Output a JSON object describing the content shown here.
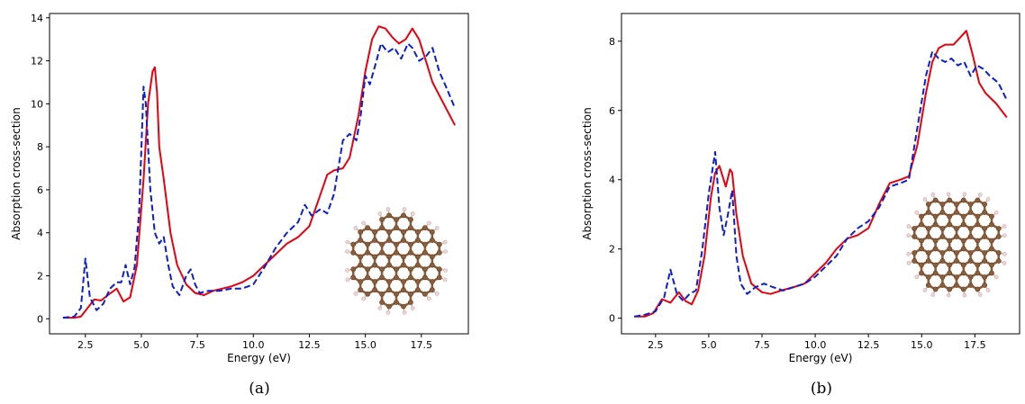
{
  "colors": {
    "red": "#e8000b",
    "blue": "#0a1fd1",
    "carbon": "#8b5e3c",
    "hydrogen": "#f2d6d6"
  },
  "chart_data": [
    {
      "type": "line",
      "caption": "(a)",
      "xlabel": "Energy (eV)",
      "ylabel": "Absorption cross-section",
      "xlim": [
        0.9,
        19.6
      ],
      "ylim": [
        -0.7,
        14.2
      ],
      "xticks": [
        2.5,
        5.0,
        7.5,
        10.0,
        12.5,
        15.0,
        17.5
      ],
      "xtick_labels": [
        "2.5",
        "5.0",
        "7.5",
        "10.0",
        "12.5",
        "15.0",
        "17.5"
      ],
      "yticks": [
        0,
        2,
        4,
        6,
        8,
        10,
        12,
        14
      ],
      "ytick_labels": [
        "0",
        "2",
        "4",
        "6",
        "8",
        "10",
        "12",
        "14"
      ],
      "grid": false,
      "inset": "flake-a",
      "series": [
        {
          "style": "solid",
          "color": "#e8000b",
          "x": [
            1.5,
            2.0,
            2.3,
            2.6,
            2.9,
            3.2,
            3.5,
            3.9,
            4.2,
            4.5,
            4.8,
            5.1,
            5.3,
            5.5,
            5.6,
            5.7,
            5.8,
            6.0,
            6.3,
            6.6,
            7.0,
            7.4,
            7.8,
            8.2,
            8.6,
            9.0,
            9.5,
            10.0,
            10.5,
            11.0,
            11.5,
            12.0,
            12.5,
            13.0,
            13.3,
            13.6,
            14.0,
            14.3,
            14.7,
            15.0,
            15.3,
            15.6,
            15.9,
            16.2,
            16.5,
            16.8,
            17.1,
            17.4,
            17.7,
            18.0,
            18.5,
            19.0
          ],
          "y": [
            0.05,
            0.05,
            0.1,
            0.5,
            0.9,
            0.85,
            1.1,
            1.4,
            0.8,
            1.0,
            2.5,
            6.5,
            10.0,
            11.5,
            11.7,
            10.5,
            8.0,
            6.5,
            4.0,
            2.5,
            1.6,
            1.2,
            1.1,
            1.3,
            1.4,
            1.5,
            1.7,
            2.0,
            2.5,
            3.0,
            3.5,
            3.8,
            4.3,
            5.8,
            6.7,
            6.9,
            7.0,
            7.5,
            9.5,
            11.5,
            13.0,
            13.6,
            13.5,
            13.1,
            12.8,
            13.0,
            13.5,
            13.0,
            12.0,
            11.0,
            10.0,
            9.0
          ]
        },
        {
          "style": "dashed",
          "color": "#0a1fd1",
          "x": [
            1.5,
            2.0,
            2.3,
            2.5,
            2.7,
            3.0,
            3.3,
            3.6,
            3.9,
            4.1,
            4.3,
            4.5,
            4.7,
            4.9,
            5.1,
            5.2,
            5.4,
            5.6,
            5.8,
            6.0,
            6.2,
            6.4,
            6.7,
            7.0,
            7.2,
            7.4,
            7.6,
            8.0,
            8.5,
            9.0,
            9.5,
            10.0,
            10.5,
            11.0,
            11.5,
            12.0,
            12.3,
            12.6,
            13.0,
            13.3,
            13.6,
            14.0,
            14.3,
            14.6,
            14.8,
            15.0,
            15.2,
            15.5,
            15.7,
            16.0,
            16.3,
            16.6,
            16.9,
            17.1,
            17.4,
            17.7,
            18.0,
            18.3,
            18.6,
            19.0
          ],
          "y": [
            0.05,
            0.1,
            0.5,
            2.8,
            1.0,
            0.4,
            0.7,
            1.4,
            1.7,
            1.7,
            2.5,
            1.6,
            2.4,
            5.0,
            10.8,
            10.0,
            6.0,
            4.0,
            3.5,
            3.8,
            2.5,
            1.5,
            1.1,
            2.0,
            2.3,
            1.6,
            1.2,
            1.3,
            1.3,
            1.4,
            1.4,
            1.6,
            2.4,
            3.3,
            4.0,
            4.5,
            5.3,
            4.8,
            5.1,
            4.9,
            5.8,
            8.3,
            8.6,
            8.3,
            9.5,
            11.3,
            10.9,
            12.0,
            12.8,
            12.4,
            12.6,
            12.1,
            12.8,
            12.6,
            12.0,
            12.2,
            12.6,
            11.5,
            10.8,
            9.8
          ]
        }
      ]
    },
    {
      "type": "line",
      "caption": "(b)",
      "xlabel": "Energy (eV)",
      "ylabel": "Absorption cross-section",
      "xlim": [
        0.9,
        19.6
      ],
      "ylim": [
        -0.45,
        8.8
      ],
      "xticks": [
        2.5,
        5.0,
        7.5,
        10.0,
        12.5,
        15.0,
        17.5
      ],
      "xtick_labels": [
        "2.5",
        "5.0",
        "7.5",
        "10.0",
        "12.5",
        "15.0",
        "17.5"
      ],
      "yticks": [
        0,
        2,
        4,
        6,
        8
      ],
      "ytick_labels": [
        "0",
        "2",
        "4",
        "6",
        "8"
      ],
      "grid": false,
      "inset": "flake-b",
      "series": [
        {
          "style": "solid",
          "color": "#e8000b",
          "x": [
            1.5,
            2.0,
            2.4,
            2.8,
            3.2,
            3.6,
            3.9,
            4.2,
            4.5,
            4.8,
            5.1,
            5.3,
            5.5,
            5.8,
            6.0,
            6.1,
            6.3,
            6.6,
            7.0,
            7.5,
            7.9,
            8.4,
            9.0,
            9.5,
            10.0,
            10.5,
            11.0,
            11.5,
            12.0,
            12.5,
            13.0,
            13.5,
            14.0,
            14.4,
            14.8,
            15.2,
            15.5,
            15.8,
            16.1,
            16.5,
            16.8,
            17.1,
            17.4,
            17.7,
            18.0,
            18.5,
            19.0
          ],
          "y": [
            0.05,
            0.05,
            0.15,
            0.55,
            0.45,
            0.75,
            0.5,
            0.4,
            0.8,
            1.8,
            3.5,
            4.2,
            4.4,
            3.8,
            4.3,
            4.2,
            3.0,
            1.8,
            1.0,
            0.75,
            0.7,
            0.8,
            0.9,
            1.0,
            1.3,
            1.6,
            2.0,
            2.3,
            2.4,
            2.6,
            3.3,
            3.9,
            4.0,
            4.1,
            5.0,
            6.5,
            7.4,
            7.8,
            7.9,
            7.9,
            8.1,
            8.3,
            7.6,
            6.8,
            6.5,
            6.2,
            5.8
          ]
        },
        {
          "style": "dashed",
          "color": "#0a1fd1",
          "x": [
            1.5,
            2.0,
            2.5,
            2.9,
            3.2,
            3.5,
            3.8,
            4.1,
            4.4,
            4.7,
            5.0,
            5.3,
            5.5,
            5.7,
            5.9,
            6.1,
            6.3,
            6.5,
            6.8,
            7.2,
            7.6,
            8.0,
            8.5,
            9.0,
            9.5,
            10.0,
            10.5,
            11.0,
            11.5,
            12.0,
            12.5,
            13.0,
            13.5,
            14.0,
            14.4,
            14.8,
            15.2,
            15.5,
            15.8,
            16.1,
            16.4,
            16.7,
            17.0,
            17.3,
            17.6,
            17.9,
            18.2,
            18.6,
            19.0
          ],
          "y": [
            0.05,
            0.1,
            0.2,
            0.6,
            1.4,
            0.7,
            0.5,
            0.7,
            0.8,
            2.0,
            3.6,
            4.8,
            3.2,
            2.4,
            3.0,
            3.7,
            1.8,
            1.0,
            0.7,
            0.9,
            1.0,
            0.9,
            0.8,
            0.9,
            1.0,
            1.2,
            1.5,
            1.8,
            2.3,
            2.6,
            2.8,
            3.2,
            3.8,
            3.9,
            4.0,
            5.5,
            7.0,
            7.7,
            7.5,
            7.4,
            7.5,
            7.3,
            7.4,
            7.0,
            7.3,
            7.2,
            7.0,
            6.8,
            6.3
          ]
        }
      ]
    }
  ]
}
